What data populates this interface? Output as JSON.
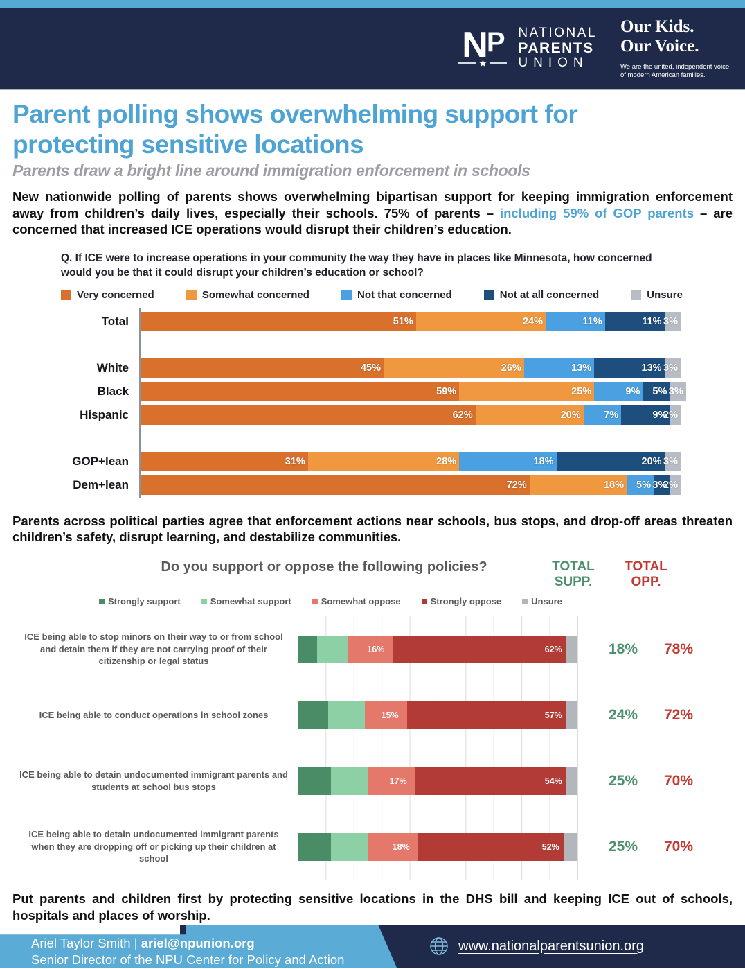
{
  "colors": {
    "navy": "#1f2a4a",
    "accent_blue": "#4da4d4",
    "strip_blue": "#56a9d4",
    "subtitle_gray": "#9b9fa4",
    "supp_green": "#4e8f6e",
    "opp_red": "#c23b33"
  },
  "header": {
    "logo_mark": {
      "n": "N",
      "p": "P",
      "star": "★"
    },
    "logo_line1": "NATIONAL",
    "logo_line2": "PARENTS",
    "logo_line3": "UNION",
    "tagline_line1": "Our Kids.",
    "tagline_line2": "Our Voice.",
    "tagline_sub": "We are the united, independent voice of modern American families."
  },
  "title": {
    "line1": "Parent polling shows overwhelming support for",
    "line2": "protecting sensitive locations",
    "subtitle": "Parents draw a bright line around immigration enforcement in schools"
  },
  "intro": {
    "pre": "New nationwide polling of parents shows overwhelming bipartisan support for keeping immigration enforcement away from children’s daily lives, especially their schools. 75% of parents – ",
    "highlight": "including 59% of GOP parents",
    "post": " – are concerned that increased ICE operations would disrupt their children’s education."
  },
  "mid_paragraph": "Parents across political parties agree that enforcement actions near schools, bus stops, and drop-off areas threaten children’s safety, disrupt learning, and destabilize communities.",
  "closing_paragraph": "Put parents and children first by protecting sensitive locations in the DHS bill and keeping ICE out of schools, hospitals and places of worship.",
  "chart_data": [
    {
      "type": "bar",
      "orientation": "horizontal-stacked",
      "title": "Q. If ICE were to increase operations in your community the way they have in places like Minnesota, how concerned would you be that it could disrupt your children’s education or school?",
      "legend": [
        "Very concerned",
        "Somewhat concerned",
        "Not that concerned",
        "Not at all concerned",
        "Unsure"
      ],
      "colors": [
        "#d9702c",
        "#f0983f",
        "#4aa0e0",
        "#1d4e7e",
        "#b8bdc5"
      ],
      "unit": "%",
      "xlim": [
        0,
        100
      ],
      "rows": [
        {
          "label": "Total",
          "values": [
            51,
            24,
            11,
            11,
            3
          ],
          "gap_before": false
        },
        {
          "label": "White",
          "values": [
            45,
            26,
            13,
            13,
            3
          ],
          "gap_before": true
        },
        {
          "label": "Black",
          "values": [
            59,
            25,
            9,
            5,
            3
          ],
          "gap_before": false
        },
        {
          "label": "Hispanic",
          "values": [
            62,
            20,
            7,
            9,
            2
          ],
          "gap_before": false
        },
        {
          "label": "GOP+lean",
          "values": [
            31,
            28,
            18,
            20,
            3
          ],
          "gap_before": true
        },
        {
          "label": "Dem+lean",
          "values": [
            72,
            18,
            5,
            3,
            2
          ],
          "gap_before": false
        }
      ]
    },
    {
      "type": "bar",
      "orientation": "horizontal-stacked",
      "title": "Do you support or oppose the following policies?",
      "legend": [
        "Strongly support",
        "Somewhat support",
        "Somewhat oppose",
        "Strongly oppose",
        "Unsure"
      ],
      "colors": [
        "#4a8c66",
        "#8ed0a5",
        "#e4786b",
        "#b23b35",
        "#b3b6bb"
      ],
      "unit": "%",
      "xlim": [
        0,
        100
      ],
      "grid": true,
      "label_indices": [
        2,
        3
      ],
      "columns": {
        "supp": "TOTAL SUPP.",
        "opp": "TOTAL OPP."
      },
      "rows": [
        {
          "label": "ICE being able to stop minors on their way to or from school and detain them if they are not carrying proof of their citizenship or legal status",
          "values": [
            7,
            11,
            16,
            62,
            4
          ],
          "total_supp": "18%",
          "total_opp": "78%"
        },
        {
          "label": "ICE being able to conduct operations in school zones",
          "values": [
            11,
            13,
            15,
            57,
            4
          ],
          "total_supp": "24%",
          "total_opp": "72%"
        },
        {
          "label": "ICE being able to detain undocumented immigrant parents and students at school bus stops",
          "values": [
            12,
            13,
            17,
            54,
            4
          ],
          "total_supp": "25%",
          "total_opp": "70%"
        },
        {
          "label": "ICE being able to detain undocumented immigrant parents when they are dropping off or picking up their children at school",
          "values": [
            12,
            13,
            18,
            52,
            5
          ],
          "total_supp": "25%",
          "total_opp": "70%"
        }
      ]
    }
  ],
  "footer": {
    "contact_name": "Ariel Taylor Smith",
    "contact_sep": " | ",
    "contact_email": "ariel@npunion.org",
    "contact_role": "Senior Director of the NPU Center for Policy and Action",
    "website": "www.nationalparentsunion.org"
  }
}
